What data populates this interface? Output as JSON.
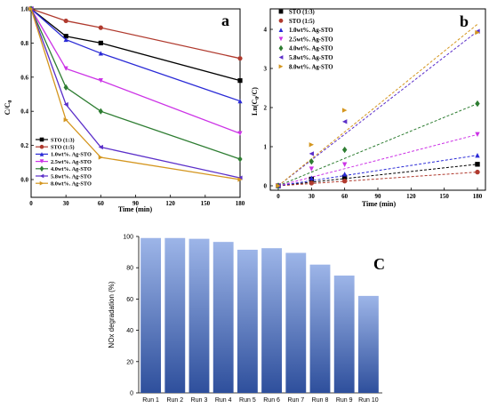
{
  "chart_data": [
    {
      "panel": "a",
      "type": "line",
      "xlabel": "Time (min)",
      "ylabel": "C/C",
      "ylabel_sub": "0",
      "xlim": [
        0,
        180
      ],
      "ylim": [
        0,
        1.0
      ],
      "x": [
        0,
        30,
        60,
        180
      ],
      "xticks": [
        "0",
        "30",
        "60",
        "90",
        "120",
        "150",
        "180"
      ],
      "yticks": [
        "0.0",
        "0.2",
        "0.4",
        "0.6",
        "0.8",
        "1.0"
      ],
      "legend_position": "bottom-left",
      "series": [
        {
          "name": "STO (1:3)",
          "color": "#000000",
          "marker": "square",
          "values": [
            1.0,
            0.84,
            0.8,
            0.58
          ]
        },
        {
          "name": "STO (1:5)",
          "color": "#b03a2e",
          "marker": "circle",
          "values": [
            1.0,
            0.93,
            0.89,
            0.71
          ]
        },
        {
          "name": "1.0wt%. Ag-STO",
          "color": "#2a2ad6",
          "marker": "triangle-up",
          "values": [
            1.0,
            0.82,
            0.74,
            0.46
          ]
        },
        {
          "name": "2.5wt%. Ag-STO",
          "color": "#cc33e6",
          "marker": "triangle-down",
          "values": [
            1.0,
            0.65,
            0.58,
            0.27
          ]
        },
        {
          "name": "4.0wt%. Ag-STO",
          "color": "#2e7d32",
          "marker": "diamond",
          "values": [
            1.0,
            0.54,
            0.4,
            0.12
          ]
        },
        {
          "name": "5.8wt%. Ag-STO",
          "color": "#5b2fc9",
          "marker": "triangle-left",
          "values": [
            1.0,
            0.44,
            0.19,
            0.01
          ]
        },
        {
          "name": "8.0wt%. Ag-STO",
          "color": "#d4961f",
          "marker": "triangle-right",
          "values": [
            1.0,
            0.35,
            0.13,
            0.0
          ]
        }
      ]
    },
    {
      "panel": "b",
      "type": "scatter",
      "xlabel": "Time (min)",
      "ylabel": "Ln(C",
      "ylabel_sub": "0",
      "ylabel_end": "/C)",
      "xlim": [
        0,
        180
      ],
      "ylim": [
        0,
        4
      ],
      "x": [
        0,
        30,
        60,
        180
      ],
      "xticks": [
        "0",
        "30",
        "60",
        "90",
        "120",
        "150",
        "180"
      ],
      "yticks": [
        "0",
        "1",
        "2",
        "3",
        "4"
      ],
      "legend_position": "top-left",
      "trendlines": "dashed",
      "series": [
        {
          "name": "STO (1:3)",
          "color": "#000000",
          "marker": "square",
          "values": [
            0.0,
            0.17,
            0.22,
            0.55
          ],
          "fit_end": 0.55
        },
        {
          "name": "STO (1:5)",
          "color": "#b03a2e",
          "marker": "circle",
          "values": [
            0.0,
            0.07,
            0.12,
            0.35
          ],
          "fit_end": 0.35
        },
        {
          "name": "1.0wt%. Ag-STO",
          "color": "#2a2ad6",
          "marker": "triangle-up",
          "values": [
            0.0,
            0.2,
            0.3,
            0.78
          ],
          "fit_end": 0.78
        },
        {
          "name": "2.5wt%. Ag-STO",
          "color": "#cc33e6",
          "marker": "triangle-down",
          "values": [
            0.0,
            0.43,
            0.54,
            1.31
          ],
          "fit_end": 1.31
        },
        {
          "name": "4.0wt%. Ag-STO",
          "color": "#2e7d32",
          "marker": "diamond",
          "values": [
            0.0,
            0.62,
            0.92,
            2.1
          ],
          "fit_end": 2.1
        },
        {
          "name": "5.8wt%. Ag-STO",
          "color": "#5b2fc9",
          "marker": "triangle-left",
          "values": [
            0.0,
            0.82,
            1.64,
            3.95
          ],
          "fit_end": 3.95
        },
        {
          "name": "8.0wt%. Ag-STO",
          "color": "#d4961f",
          "marker": "triangle-right",
          "values": [
            0.0,
            1.05,
            1.93,
            3.92
          ],
          "fit_end": 4.13
        }
      ]
    },
    {
      "panel": "C",
      "type": "bar",
      "ylabel": "NOx degradation (%)",
      "ylim": [
        0,
        100
      ],
      "yticks": [
        "0",
        "20",
        "40",
        "60",
        "80",
        "100"
      ],
      "categories": [
        "Run 1",
        "Run 2",
        "Run 3",
        "Run 4",
        "Run 5",
        "Run 6",
        "Run 7",
        "Run 8",
        "Run 9",
        "Run 10"
      ],
      "values": [
        99,
        99,
        98.5,
        96.5,
        91.5,
        92.5,
        89.5,
        82,
        75,
        62
      ],
      "bar_gradient": [
        "#9db5e8",
        "#2e4f9c"
      ]
    }
  ]
}
